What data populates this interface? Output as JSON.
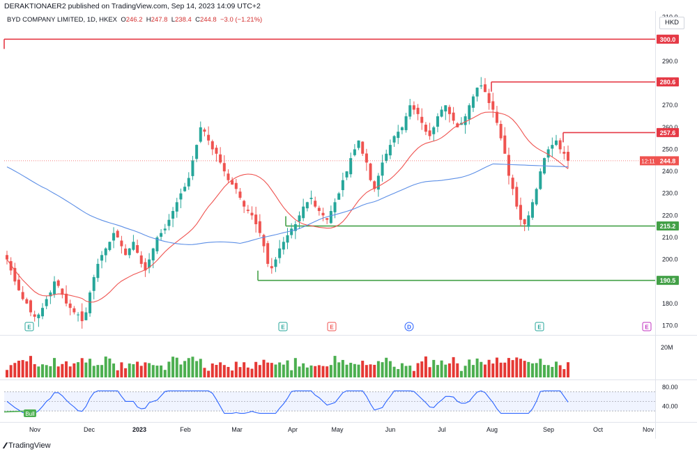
{
  "header": {
    "publisher": "DERAKTIONAER2 published on TradingView.com, Sep 14, 2023 14:09 UTC+2",
    "symbol": "BYD COMPANY LIMITED, 1D, HKEX",
    "open_label": "O",
    "open": "246.2",
    "high_label": "H",
    "high": "247.8",
    "low_label": "L",
    "low": "238.4",
    "close_label": "C",
    "close": "244.8",
    "change": "−3.0 (−1.21%)",
    "currency": "HKD"
  },
  "footer": {
    "brand": "TradingView"
  },
  "colors": {
    "up": "#26a69a",
    "down": "#ef5350",
    "vol_up": "#4caf50",
    "vol_down": "#e53935",
    "ma_slow": "#5b8ee6",
    "ma_fast": "#ef5350",
    "resistance": "#e53945",
    "support": "#43a047",
    "rsi": "#2962ff"
  },
  "chart_data": {
    "type": "candlestick",
    "y_axis_ticks": [
      "310.0",
      "300.0",
      "290.0",
      "280.0",
      "270.0",
      "260.0",
      "250.0",
      "240.0",
      "230.0",
      "220.0",
      "210.0",
      "200.0",
      "190.0",
      "180.0",
      "170.0"
    ],
    "ylim": [
      167,
      314
    ],
    "x_axis_labels": [
      "Nov",
      "Dec",
      "2023",
      "Feb",
      "Mar",
      "Apr",
      "May",
      "Jun",
      "Jul",
      "Aug",
      "Sep",
      "Oct",
      "Nov"
    ],
    "levels": [
      {
        "label": "300.0",
        "value": 300.0,
        "kind": "resistance"
      },
      {
        "label": "280.6",
        "value": 280.6,
        "kind": "resistance"
      },
      {
        "label": "257.6",
        "value": 257.6,
        "kind": "resistance"
      },
      {
        "label": "215.2",
        "value": 215.2,
        "kind": "support"
      },
      {
        "label": "190.5",
        "value": 190.5,
        "kind": "support"
      }
    ],
    "last_price": {
      "value": 244.8,
      "label": "244.8",
      "countdown": "12:11"
    },
    "closes": [
      200,
      195,
      190,
      186,
      182,
      180,
      176,
      174,
      175,
      178,
      182,
      185,
      190,
      188,
      184,
      180,
      178,
      176,
      175,
      172,
      176,
      185,
      192,
      198,
      202,
      205,
      208,
      212,
      210,
      206,
      202,
      205,
      208,
      203,
      198,
      195,
      200,
      205,
      210,
      212,
      214,
      218,
      222,
      226,
      230,
      233,
      237,
      245,
      252,
      260,
      258,
      254,
      250,
      248,
      244,
      240,
      236,
      234,
      232,
      228,
      224,
      222,
      220,
      216,
      212,
      206,
      198,
      196,
      200,
      205,
      208,
      211,
      214,
      216,
      220,
      224,
      226,
      228,
      224,
      222,
      220,
      218,
      222,
      226,
      230,
      236,
      240,
      246,
      250,
      254,
      248,
      244,
      236,
      232,
      238,
      244,
      248,
      252,
      256,
      258,
      260,
      265,
      270,
      268,
      266,
      262,
      258,
      256,
      260,
      265,
      268,
      270,
      266,
      263,
      260,
      262,
      265,
      270,
      274,
      278,
      279,
      276,
      271,
      268,
      262,
      255,
      248,
      238,
      232,
      224,
      218,
      216,
      220,
      226,
      232,
      240,
      246,
      250,
      252,
      254,
      250,
      248,
      244.8
    ],
    "ma_fast_label": "MA (red)",
    "ma_slow_label": "MA (blue)",
    "events": [
      {
        "label": "E",
        "color": "#26a69a"
      },
      {
        "label": "E",
        "color": "#26a69a"
      },
      {
        "label": "E",
        "color": "#ef5350"
      },
      {
        "label": "D",
        "color": "#2962ff"
      },
      {
        "label": "E",
        "color": "#26a69a"
      },
      {
        "label": "E",
        "color": "#c030c0"
      }
    ],
    "volume_axis_label": "20M",
    "rsi": {
      "ticks": [
        "80.00",
        "40.00"
      ],
      "badge": "Bull",
      "upper_band": 70,
      "lower_band": 30,
      "mid": 50
    }
  }
}
